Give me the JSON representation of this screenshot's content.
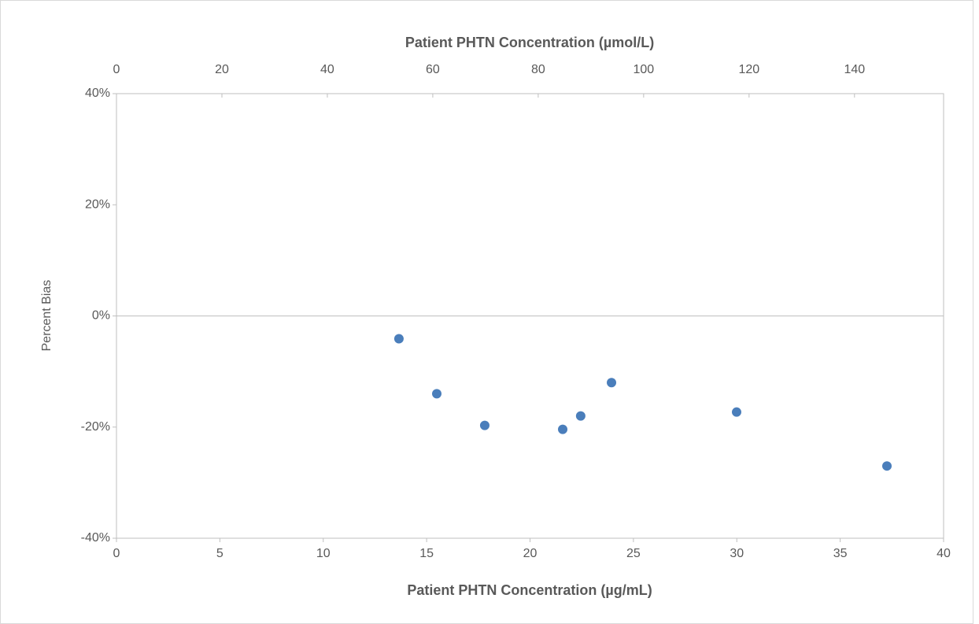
{
  "chart_data": {
    "type": "scatter",
    "x_label": "Patient PHTN Concentration (µg/mL)",
    "x2_label": "Patient PHTN Concentration (µmol/L)",
    "y_label": "Percent Bias",
    "x": [
      13.66,
      15.49,
      17.81,
      21.58,
      22.45,
      23.94,
      29.99,
      37.26
    ],
    "values": [
      -4.1,
      -14.0,
      -19.7,
      -20.4,
      -18.0,
      -12.0,
      -17.3,
      -27.0
    ],
    "color": "#4a7ebb",
    "xlim": [
      0,
      40
    ],
    "xticks": [
      0,
      5,
      10,
      15,
      20,
      25,
      30,
      35,
      40
    ],
    "x2lim": [
      0,
      156.9
    ],
    "x2ticks": [
      0,
      20,
      40,
      60,
      80,
      100,
      120,
      140
    ],
    "ylim": [
      -40,
      40
    ],
    "yticks": [
      {
        "value": -40,
        "label": "-40%"
      },
      {
        "value": -20,
        "label": "-20%"
      },
      {
        "value": 0,
        "label": "0%"
      },
      {
        "value": 20,
        "label": "20%"
      },
      {
        "value": 40,
        "label": "40%"
      }
    ],
    "grid": false
  }
}
